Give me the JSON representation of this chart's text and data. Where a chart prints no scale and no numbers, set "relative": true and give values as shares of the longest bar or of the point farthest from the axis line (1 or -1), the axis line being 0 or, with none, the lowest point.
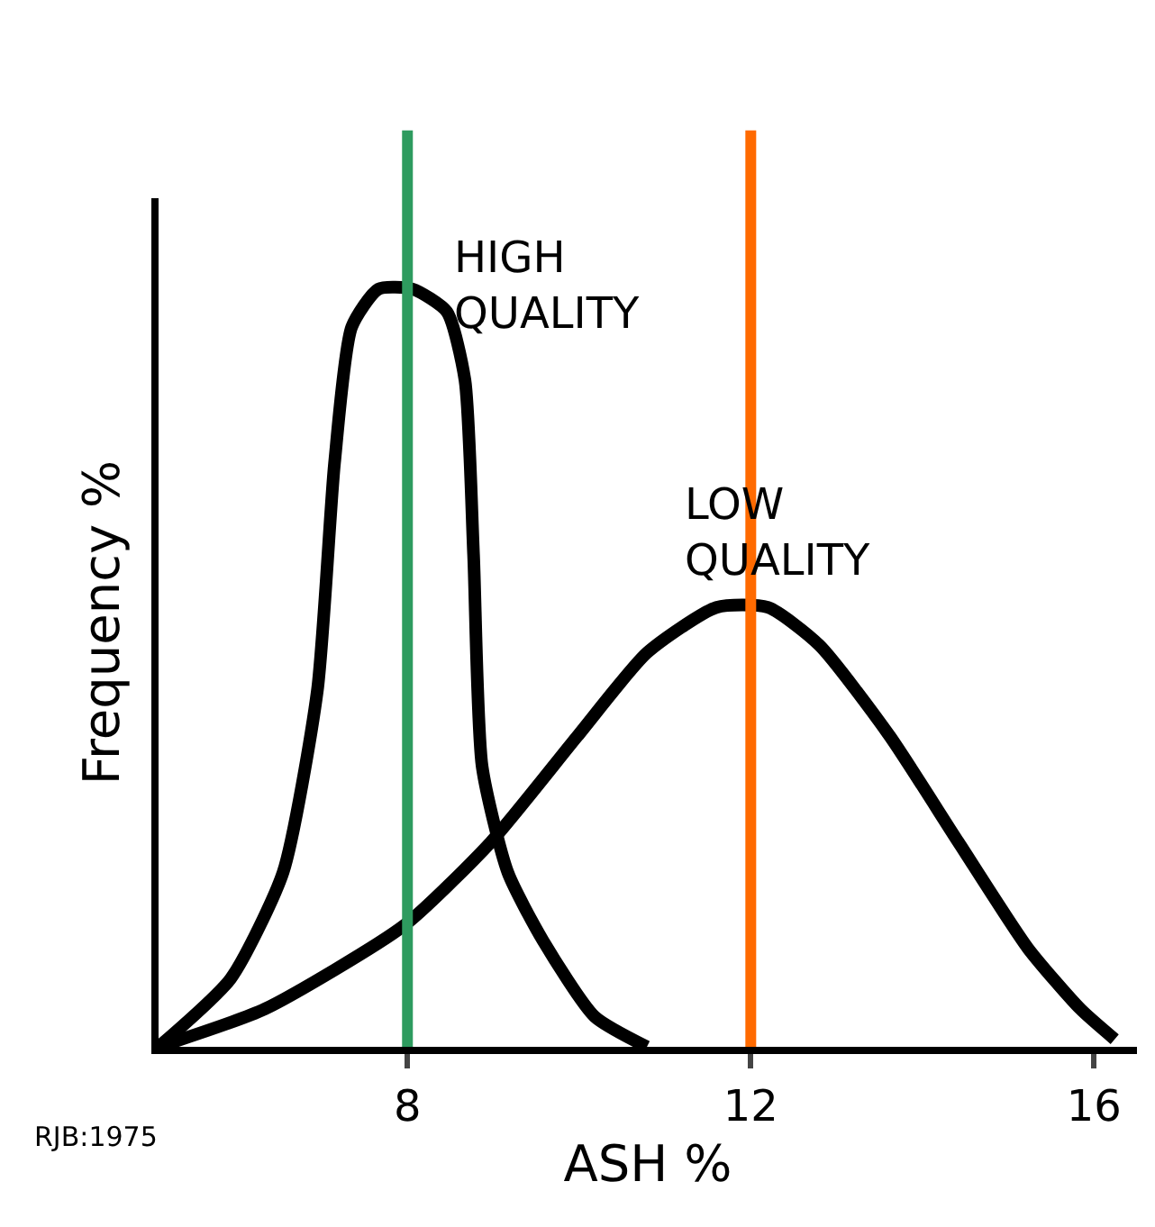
{
  "chart_data": {
    "type": "line",
    "relative": true,
    "xlabel": "ASH %",
    "ylabel": "Frequency %",
    "xlim": [
      5.1,
      16.5
    ],
    "xticks": [
      8,
      12,
      16
    ],
    "grid": false,
    "legend": false,
    "marker": "none",
    "line_style": "solid",
    "series": [
      {
        "name": "HIGH QUALITY",
        "color": "#000000",
        "x": [
          5.1,
          5.94,
          6.55,
          6.95,
          7.15,
          7.35,
          7.66,
          8.06,
          8.46,
          8.67,
          8.77,
          8.87,
          9.17,
          9.58,
          10.18,
          10.79
        ],
        "values": [
          0,
          0.09,
          0.23,
          0.47,
          0.77,
          0.95,
          1.0,
          1.0,
          0.97,
          0.88,
          0.65,
          0.37,
          0.23,
          0.14,
          0.04,
          0
        ]
      },
      {
        "name": "LOW QUALITY",
        "color": "#000000",
        "x": [
          5.1,
          6.34,
          7.96,
          8.97,
          9.98,
          10.79,
          11.6,
          12.2,
          12.8,
          13.62,
          14.42,
          15.23,
          15.84,
          16.24
        ],
        "values": [
          0,
          0.05,
          0.16,
          0.27,
          0.41,
          0.52,
          0.58,
          0.58,
          0.53,
          0.41,
          0.27,
          0.13,
          0.05,
          0.01
        ]
      }
    ],
    "ref_lines": [
      {
        "axis": "x",
        "value": 8,
        "color": "#2e9b5f"
      },
      {
        "axis": "x",
        "value": 12,
        "color": "#ff6a00"
      }
    ],
    "annotations": [
      "RJB:1975"
    ]
  }
}
